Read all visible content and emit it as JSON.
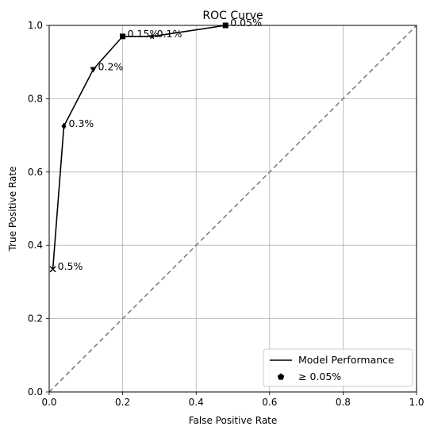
{
  "chart_data": {
    "type": "line",
    "title": "ROC Curve",
    "xlabel": "False Positive Rate",
    "ylabel": "True Positive Rate",
    "xlim": [
      0,
      1
    ],
    "ylim": [
      0,
      1
    ],
    "xticks": [
      "0.0",
      "0.2",
      "0.4",
      "0.6",
      "0.8",
      "1.0"
    ],
    "yticks": [
      "0.0",
      "0.2",
      "0.4",
      "0.6",
      "0.8",
      "1.0"
    ],
    "grid": true,
    "legend_position": "bottom-right",
    "series": [
      {
        "name": "Model Performance",
        "color": "#000000",
        "points": [
          {
            "x": 0.01,
            "y": 0.335,
            "marker": "x",
            "label": "0.5%"
          },
          {
            "x": 0.04,
            "y": 0.725,
            "marker": "diamond",
            "label": "0.3%"
          },
          {
            "x": 0.12,
            "y": 0.88,
            "marker": "triangle-down",
            "label": "0.2%"
          },
          {
            "x": 0.2,
            "y": 0.97,
            "marker": "square",
            "label": "0.15%"
          },
          {
            "x": 0.28,
            "y": 0.97,
            "marker": "star",
            "label": "0.1%"
          },
          {
            "x": 0.48,
            "y": 1.0,
            "marker": "square",
            "label": "0.05%"
          }
        ]
      }
    ],
    "reference_line": {
      "from": [
        0,
        0
      ],
      "to": [
        1,
        1
      ],
      "style": "dashed",
      "color": "#808080"
    },
    "legend": [
      {
        "label": "Model Performance",
        "symbol": "line"
      },
      {
        "label": "≥ 0.05%",
        "symbol": "pentagon"
      }
    ]
  }
}
